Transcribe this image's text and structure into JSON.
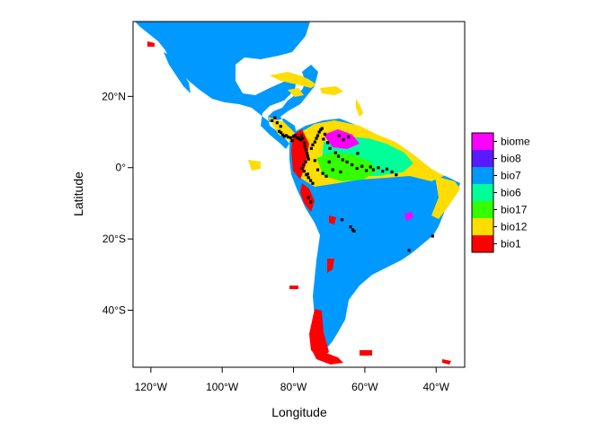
{
  "map": {
    "x_axis_title": "Longitude",
    "y_axis_title": "Latitude",
    "lon_range": [
      -125,
      -32
    ],
    "lat_range": [
      -56,
      41
    ],
    "x_ticks": [
      {
        "value": -120,
        "label": "120°W"
      },
      {
        "value": -100,
        "label": "100°W"
      },
      {
        "value": -80,
        "label": "80°W"
      },
      {
        "value": -60,
        "label": "60°W"
      },
      {
        "value": -40,
        "label": "40°W"
      }
    ],
    "y_ticks": [
      {
        "value": 20,
        "label": "20°N"
      },
      {
        "value": 0,
        "label": "0°"
      },
      {
        "value": -20,
        "label": "20°S"
      },
      {
        "value": -40,
        "label": "40°S"
      }
    ],
    "background_class_color": "#0099FF",
    "legend": [
      {
        "label": "biome",
        "color": "#FF00FF"
      },
      {
        "label": "bio8",
        "color": "#5A1AFF"
      },
      {
        "label": "bio7",
        "color": "#0099FF"
      },
      {
        "label": "bio6",
        "color": "#00FF99"
      },
      {
        "label": "bio17",
        "color": "#33FF00"
      },
      {
        "label": "bio12",
        "color": "#FFDD00"
      },
      {
        "label": "bio1",
        "color": "#FF0000"
      }
    ],
    "occurrence_color": "#000000"
  }
}
